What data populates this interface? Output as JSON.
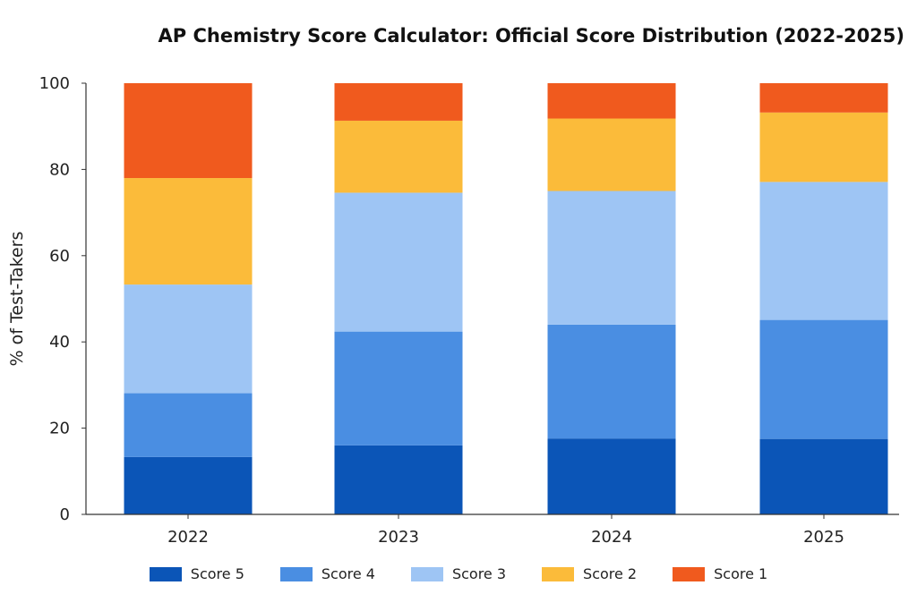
{
  "chart_data": {
    "type": "bar",
    "stacked": true,
    "title": "AP Chemistry Score Calculator: Official Score Distribution (2022-2025)",
    "xlabel": "",
    "ylabel": "% of Test-Takers",
    "ylim": [
      0,
      100
    ],
    "yticks": [
      0,
      20,
      40,
      60,
      80,
      100
    ],
    "categories": [
      "2022",
      "2023",
      "2024",
      "2025"
    ],
    "series": [
      {
        "name": "Score 5",
        "color": "#0b55b7",
        "values": [
          13.3,
          16.0,
          17.6,
          17.5
        ]
      },
      {
        "name": "Score 4",
        "color": "#4a8ee2",
        "values": [
          14.8,
          26.4,
          26.4,
          27.6
        ]
      },
      {
        "name": "Score 3",
        "color": "#9ec5f4",
        "values": [
          25.2,
          32.2,
          31.0,
          32.0
        ]
      },
      {
        "name": "Score 2",
        "color": "#fbbb3a",
        "values": [
          24.7,
          16.7,
          16.8,
          16.1
        ]
      },
      {
        "name": "Score 1",
        "color": "#f05a1e",
        "values": [
          22.0,
          8.7,
          8.2,
          6.8
        ]
      }
    ],
    "legend_position": "bottom-center",
    "grid": false
  }
}
